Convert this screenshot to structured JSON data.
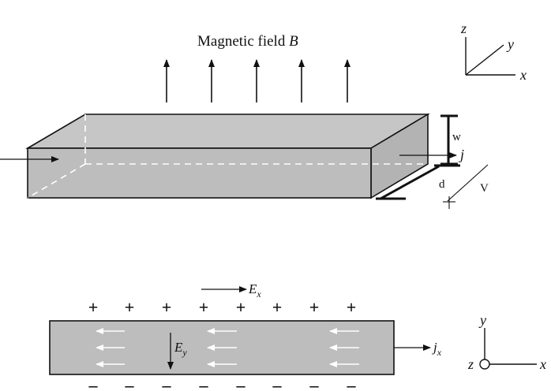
{
  "top_diagram": {
    "field_label": "Magnetic field ",
    "field_symbol": "B",
    "width_label": "w",
    "depth_label": "d",
    "voltage_label": "V",
    "current_label": "j",
    "axes": {
      "z": "z",
      "y": "y",
      "x": "x"
    }
  },
  "bottom_diagram": {
    "ex_label": "E",
    "ex_sub": "x",
    "ey_label": "E",
    "ey_sub": "y",
    "jx_label": "j",
    "jx_sub": "x",
    "plus": "+",
    "minus": "–",
    "axes": {
      "y": "y",
      "z": "z",
      "x": "x"
    }
  },
  "colors": {
    "slab_face": "#bdbdbd",
    "slab_top": "#c6c6c6",
    "slab_side": "#b3b3b3",
    "stroke": "#111111",
    "dashed": "#ffffff",
    "inner_arrows": "#ffffff"
  }
}
